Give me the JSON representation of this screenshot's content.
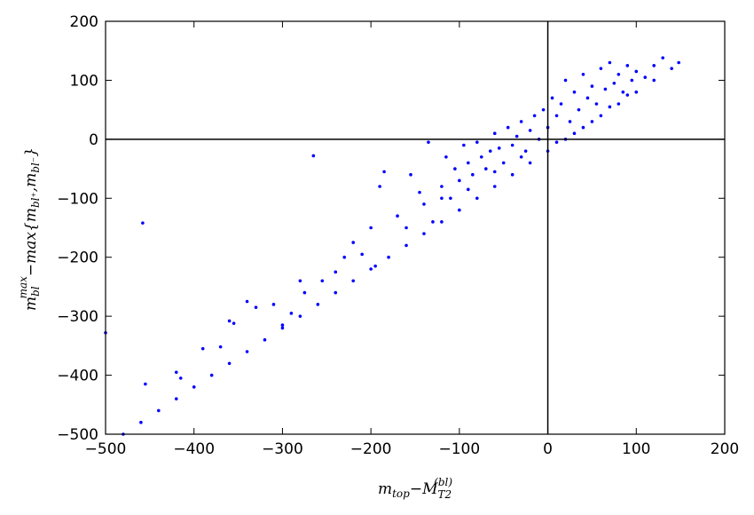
{
  "chart_data": {
    "type": "scatter",
    "xlabel": [
      "m",
      "top",
      "−",
      "M",
      "T2",
      "(bl)"
    ],
    "ylabel": [
      "m",
      "bl",
      "max",
      "−max{",
      "m",
      "bl⁺",
      ",",
      "m",
      "bl⁻",
      "}"
    ],
    "xlim": [
      -500,
      200
    ],
    "ylim": [
      -500,
      200
    ],
    "xticks": [
      {
        "value": -500,
        "label": "−500"
      },
      {
        "value": -400,
        "label": "−400"
      },
      {
        "value": -300,
        "label": "−300"
      },
      {
        "value": -200,
        "label": "−200"
      },
      {
        "value": -100,
        "label": "−100"
      },
      0,
      100,
      200
    ],
    "yticks": [
      {
        "value": -500,
        "label": "−500"
      },
      {
        "value": -400,
        "label": "−400"
      },
      {
        "value": -300,
        "label": "−300"
      },
      {
        "value": -200,
        "label": "−200"
      },
      {
        "value": -100,
        "label": "−100"
      },
      0,
      100,
      200
    ],
    "hlines": [
      0
    ],
    "vlines": [
      0
    ],
    "color": "#0000ff",
    "x": [
      -480,
      -460,
      -440,
      -420,
      -400,
      -380,
      -360,
      -340,
      -320,
      -300,
      -280,
      -260,
      -240,
      -220,
      -200,
      -180,
      -160,
      -140,
      -120,
      -100,
      -80,
      -60,
      -40,
      -20,
      0,
      20,
      40,
      60,
      80,
      100,
      120,
      -500,
      -458,
      -455,
      -420,
      -415,
      -390,
      -370,
      -360,
      -355,
      -340,
      -330,
      -310,
      -300,
      -290,
      -280,
      -275,
      -265,
      -255,
      -240,
      -230,
      -220,
      -210,
      -200,
      -195,
      -190,
      -185,
      -170,
      -160,
      -155,
      -145,
      -140,
      -135,
      -130,
      -120,
      -115,
      -110,
      -105,
      -100,
      -95,
      -90,
      -85,
      -80,
      -75,
      -70,
      -65,
      -60,
      -55,
      -50,
      -45,
      -40,
      -35,
      -30,
      -25,
      -20,
      -15,
      -10,
      -5,
      0,
      5,
      10,
      15,
      20,
      25,
      30,
      35,
      40,
      45,
      50,
      55,
      60,
      65,
      70,
      75,
      80,
      85,
      90,
      95,
      100,
      110,
      120,
      130,
      140,
      148,
      -120,
      -90,
      -60,
      -30,
      10,
      30,
      50,
      70,
      90
    ],
    "values": [
      -500,
      -480,
      -460,
      -440,
      -420,
      -400,
      -380,
      -360,
      -340,
      -320,
      -300,
      -280,
      -260,
      -240,
      -220,
      -200,
      -180,
      -160,
      -140,
      -120,
      -100,
      -80,
      -60,
      -40,
      -20,
      0,
      20,
      40,
      60,
      80,
      100,
      -328,
      -142,
      -415,
      -395,
      -405,
      -355,
      -352,
      -308,
      -312,
      -275,
      -285,
      -280,
      -315,
      -295,
      -240,
      -260,
      -28,
      -240,
      -225,
      -200,
      -175,
      -195,
      -150,
      -215,
      -80,
      -55,
      -130,
      -150,
      -60,
      -90,
      -110,
      -5,
      -140,
      -80,
      -30,
      -100,
      -50,
      -70,
      -10,
      -40,
      -60,
      -5,
      -30,
      -50,
      -20,
      10,
      -15,
      -40,
      20,
      -10,
      5,
      30,
      -20,
      15,
      40,
      0,
      50,
      20,
      70,
      40,
      60,
      100,
      30,
      80,
      50,
      110,
      70,
      90,
      60,
      120,
      85,
      130,
      95,
      110,
      80,
      125,
      100,
      115,
      105,
      125,
      138,
      120,
      130,
      -100,
      -85,
      -55,
      -30,
      -5,
      10,
      30,
      55,
      75
    ]
  }
}
